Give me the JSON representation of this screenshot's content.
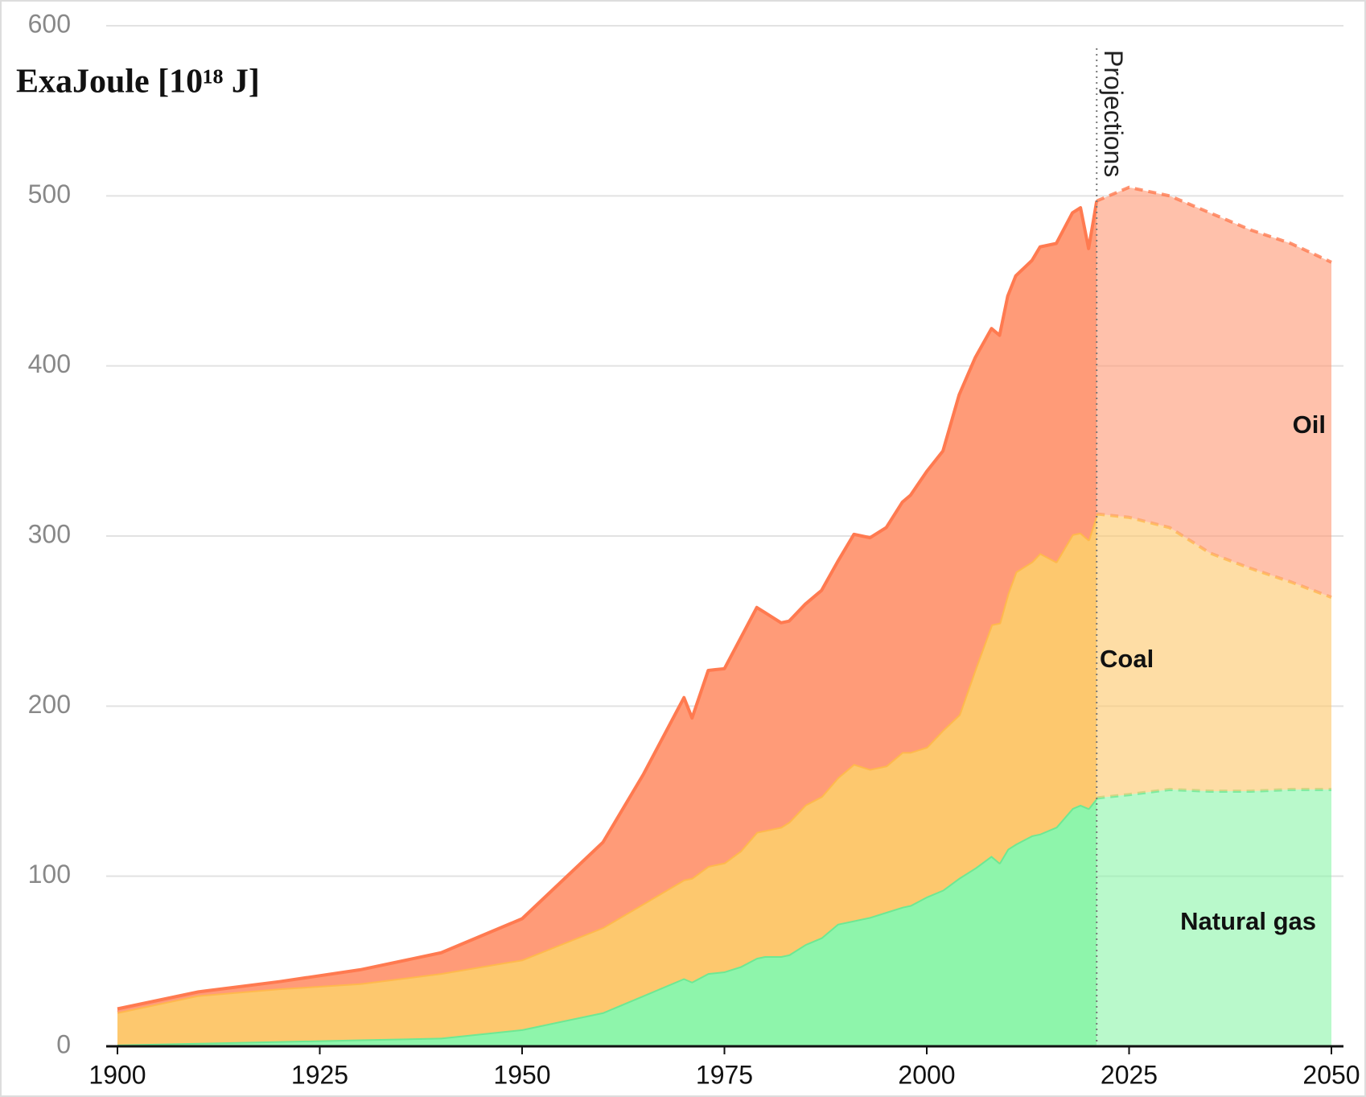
{
  "chart_data": {
    "type": "stacked-area",
    "ylabel": "ExaJoule [10¹⁸ J]",
    "annotation": "Projections",
    "projection_start": 2021,
    "x": [
      1900,
      1910,
      1920,
      1930,
      1940,
      1950,
      1960,
      1965,
      1970,
      1971,
      1973,
      1975,
      1977,
      1979,
      1980,
      1982,
      1983,
      1985,
      1987,
      1989,
      1991,
      1993,
      1995,
      1997,
      1998,
      2000,
      2002,
      2004,
      2006,
      2008,
      2009,
      2010,
      2011,
      2013,
      2014,
      2016,
      2018,
      2019,
      2020,
      2021,
      2025,
      2030,
      2035,
      2040,
      2045,
      2050
    ],
    "series": [
      {
        "name": "Natural gas",
        "color": "#8ef5ab",
        "line_color": "#6ee893",
        "values": [
          1,
          2,
          3,
          4,
          5,
          10,
          20,
          30,
          40,
          38,
          43,
          44,
          47,
          52,
          53,
          53,
          54,
          60,
          64,
          72,
          74,
          76,
          79,
          82,
          83,
          88,
          92,
          99,
          105,
          112,
          108,
          116,
          119,
          124,
          125,
          129,
          140,
          142,
          140,
          146,
          148,
          151,
          150,
          150,
          151,
          151
        ]
      },
      {
        "name": "Coal",
        "color": "#fdc86e",
        "line_color": "#ffb84d",
        "values": [
          19,
          28,
          31,
          33,
          38,
          41,
          50,
          54,
          58,
          61,
          63,
          64,
          68,
          74,
          74,
          76,
          78,
          82,
          83,
          86,
          92,
          87,
          86,
          91,
          90,
          88,
          94,
          96,
          117,
          136,
          141,
          150,
          160,
          161,
          165,
          156,
          161,
          160,
          158,
          167,
          163,
          154,
          140,
          131,
          122,
          113
        ]
      },
      {
        "name": "Oil",
        "color": "#ff9b78",
        "line_color": "#ff7a50",
        "values": [
          2,
          2,
          4,
          8,
          12,
          24,
          50,
          76,
          107,
          94,
          115,
          114,
          125,
          132,
          128,
          120,
          118,
          118,
          121,
          127,
          135,
          136,
          140,
          147,
          151,
          162,
          164,
          188,
          183,
          174,
          169,
          175,
          174,
          177,
          180,
          187,
          189,
          191,
          171,
          184,
          194,
          195,
          200,
          199,
          199,
          197
        ]
      }
    ],
    "xlim": [
      1900,
      2050
    ],
    "xticks": [
      1900,
      1925,
      1950,
      1975,
      2000,
      2025,
      2050
    ],
    "ylim": [
      0,
      600
    ],
    "yticks": [
      0,
      100,
      200,
      300,
      400,
      500,
      600
    ],
    "grid": true
  }
}
